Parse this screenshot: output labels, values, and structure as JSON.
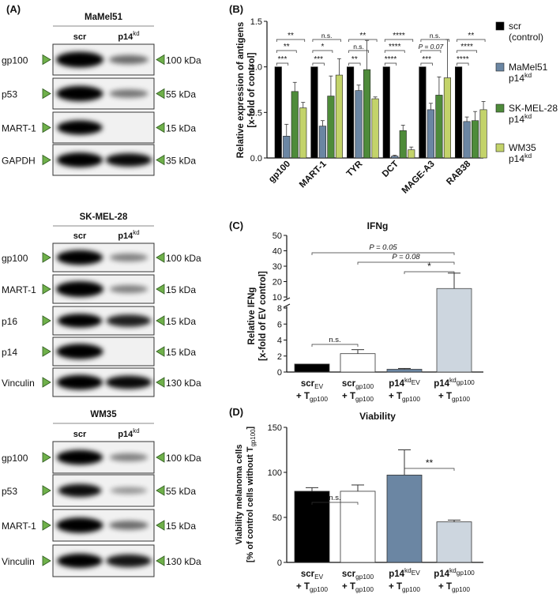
{
  "panel_a": {
    "label": "(A)",
    "blots": [
      {
        "title": "MaMel51",
        "col1": "scr",
        "col2": "p14",
        "col2_sup": "kd",
        "rows": [
          {
            "name": "gp100",
            "kda": "100 kDa",
            "left": 1.0,
            "right": 0.45
          },
          {
            "name": "p53",
            "kda": "55 kDa",
            "left": 0.95,
            "right": 0.4
          },
          {
            "name": "MART-1",
            "kda": "15 kDa",
            "left": 0.85,
            "right": 0.0
          },
          {
            "name": "GAPDH",
            "kda": "35 kDa",
            "left": 0.9,
            "right": 0.9
          }
        ]
      },
      {
        "title": "SK-MEL-28",
        "col1": "scr",
        "col2": "p14",
        "col2_sup": "kd",
        "rows": [
          {
            "name": "gp100",
            "kda": "100 kDa",
            "left": 0.9,
            "right": 0.35
          },
          {
            "name": "MART-1",
            "kda": "15 kDa",
            "left": 1.0,
            "right": 0.35
          },
          {
            "name": "p16",
            "kda": "15 kDa",
            "left": 0.8,
            "right": 0.8
          },
          {
            "name": "p14",
            "kda": "15 kDa",
            "left": 0.95,
            "right": 0.0
          },
          {
            "name": "Vinculin",
            "kda": "130 kDa",
            "left": 0.9,
            "right": 0.9
          }
        ]
      },
      {
        "title": "WM35",
        "col1": "scr",
        "col2": "p14",
        "col2_sup": "kd",
        "rows": [
          {
            "name": "gp100",
            "kda": "100 kDa",
            "left": 0.9,
            "right": 0.35
          },
          {
            "name": "p53",
            "kda": "55 kDa",
            "left": 0.7,
            "right": 0.25
          },
          {
            "name": "MART-1",
            "kda": "15 kDa",
            "left": 0.95,
            "right": 0.45
          },
          {
            "name": "Vinculin",
            "kda": "130 kDa",
            "left": 0.85,
            "right": 0.85
          }
        ]
      }
    ]
  },
  "chart_data": [
    {
      "panel": "(B)",
      "type": "bar",
      "ylabel_line1": "Relative expression of antigens",
      "ylabel_line2": "[x-fold of control]",
      "ylim": [
        0,
        1.5
      ],
      "yticks": [
        "0.0",
        "0.5",
        "1.0",
        "1.5"
      ],
      "categories": [
        "gp100",
        "MART-1",
        "TYR",
        "DCT",
        "MAGE-A3",
        "RAB38"
      ],
      "series": [
        {
          "name": "scr",
          "name2": "(control)",
          "color": "#000000",
          "values": [
            1,
            1,
            1,
            1,
            1,
            1
          ],
          "err": [
            0,
            0,
            0,
            0,
            0,
            0
          ]
        },
        {
          "name": "MaMel51",
          "name2": "p14",
          "sup": "kd",
          "color": "#6b86a3",
          "values": [
            0.24,
            0.35,
            0.74,
            0.02,
            0.53,
            0.4
          ],
          "err": [
            0.13,
            0.06,
            0.06,
            0.01,
            0.07,
            0.05
          ]
        },
        {
          "name": "SK-MEL-28",
          "name2": "p14",
          "sup": "kd",
          "color": "#4e8b3a",
          "values": [
            0.73,
            0.68,
            0.97,
            0.3,
            0.69,
            0.41
          ],
          "err": [
            0.1,
            0.22,
            0.32,
            0.06,
            0.2,
            0.1
          ]
        },
        {
          "name": "WM35",
          "name2": "p14",
          "sup": "kd",
          "color": "#c3d36a",
          "values": [
            0.55,
            0.91,
            0.65,
            0.09,
            0.88,
            0.53
          ],
          "err": [
            0.06,
            0.18,
            0.02,
            0.03,
            0.42,
            0.09
          ]
        }
      ],
      "significance": [
        [
          "***",
          "**",
          "**"
        ],
        [
          "***",
          "*",
          "n.s."
        ],
        [
          "**",
          "n.s.",
          "**"
        ],
        [
          "****",
          "****",
          "****"
        ],
        [
          "***",
          "P = 0.07",
          "n.s."
        ],
        [
          "****",
          "****",
          "**"
        ]
      ]
    },
    {
      "panel": "(C)",
      "type": "bar",
      "title": "IFNg",
      "ylabel_line1": "Relative IFNg",
      "ylabel_line2": "[x-fold of EV control]",
      "yticks_low": [
        "0",
        "2",
        "4",
        "6",
        "8"
      ],
      "yticks_high": [
        "10",
        "20",
        "30",
        "40",
        "50"
      ],
      "categories": [
        {
          "main": "scr",
          "sub1": "EV",
          "line2": "+ T",
          "sub2": "gp100"
        },
        {
          "main": "scr",
          "sub1": "gp100",
          "line2": "+ T",
          "sub2": "gp100"
        },
        {
          "main": "p14",
          "sup": "kd",
          "sub1": "EV",
          "line2": "+ T",
          "sub2": "gp100"
        },
        {
          "main": "p14",
          "sup": "kd",
          "sub1": "gp100",
          "line2": "+ T",
          "sub2": "gp100"
        }
      ],
      "values": [
        1.0,
        2.3,
        0.35,
        15.5
      ],
      "err": [
        0,
        0.5,
        0.1,
        10
      ],
      "colors": [
        "#000000",
        "#ffffff",
        "#6b86a3",
        "#cdd6df"
      ],
      "brackets": [
        "n.s.",
        "P = 0.05",
        "P = 0.08",
        "*"
      ]
    },
    {
      "panel": "(D)",
      "type": "bar",
      "title": "Viability",
      "ylabel_line1": "Viability melanoma cells",
      "ylabel_line2": "[% of control cells without T",
      "ylabel_sub": "gp100",
      "ylabel_end": "]",
      "ylim": [
        0,
        150
      ],
      "yticks": [
        "0",
        "50",
        "100",
        "150"
      ],
      "categories": [
        {
          "main": "scr",
          "sub1": "EV",
          "line2": "+ T",
          "sub2": "gp100"
        },
        {
          "main": "scr",
          "sub1": "gp100",
          "line2": "+ T",
          "sub2": "gp100"
        },
        {
          "main": "p14",
          "sup": "kd",
          "sub1": "EV",
          "line2": "+ T",
          "sub2": "gp100"
        },
        {
          "main": "p14",
          "sup": "kd",
          "sub1": "gp100",
          "line2": "+ T",
          "sub2": "gp100"
        }
      ],
      "values": [
        79,
        79,
        97,
        45
      ],
      "err": [
        4,
        7,
        28,
        2
      ],
      "colors": [
        "#000000",
        "#ffffff",
        "#6b86a3",
        "#cdd6df"
      ],
      "brackets": [
        "n.s.",
        "**"
      ]
    }
  ]
}
